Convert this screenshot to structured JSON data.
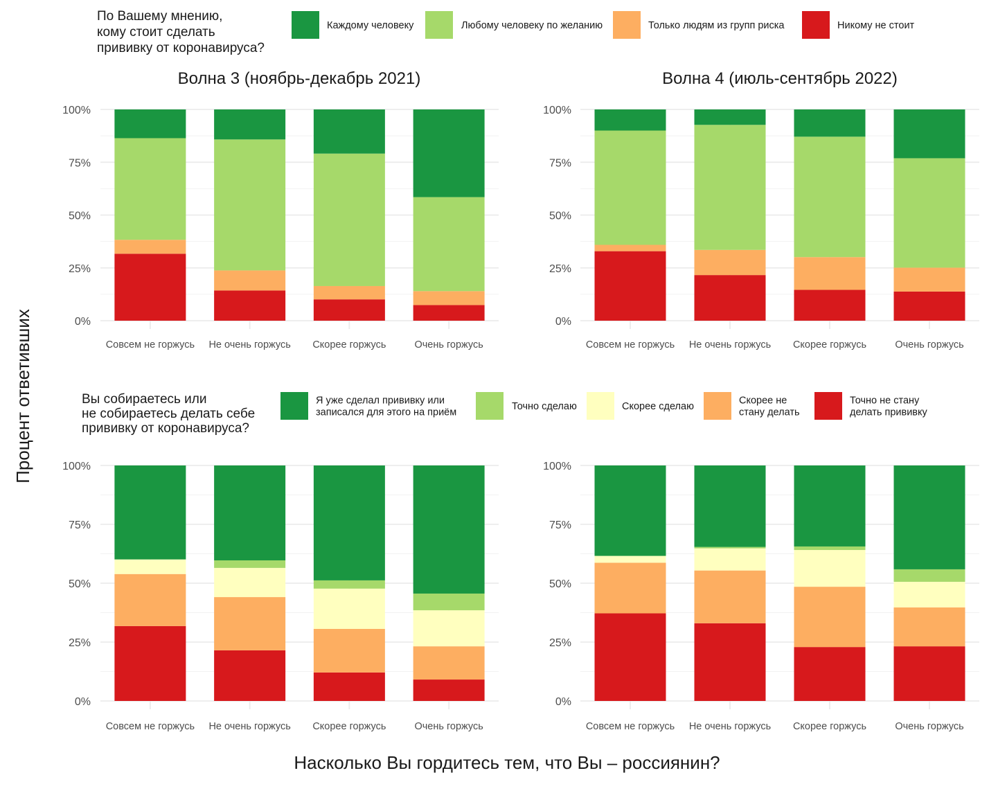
{
  "figure": {
    "y_axis_label": "Процент ответивших",
    "x_axis_label": "Насколько Вы гордитесь тем, что Вы – россиянин?",
    "facet_titles": [
      "Волна 3 (ноябрь-декабрь 2021)",
      "Волна 4 (июль-сентябрь 2022)"
    ]
  },
  "legends": [
    {
      "title_lines": [
        "По Вашему мнению,",
        "кому стоит сделать",
        "прививку от коронавируса?"
      ],
      "items": [
        {
          "label_lines": [
            "Каждому человеку"
          ],
          "color": "#1a9641"
        },
        {
          "label_lines": [
            "Любому человеку по желанию"
          ],
          "color": "#a6d96a"
        },
        {
          "label_lines": [
            "Только людям из групп риска"
          ],
          "color": "#fdae61"
        },
        {
          "label_lines": [
            "Никому не стоит"
          ],
          "color": "#d7191c"
        }
      ]
    },
    {
      "title_lines": [
        "Вы собираетесь или",
        "не собираетесь делать себе",
        "прививку от коронавируса?"
      ],
      "items": [
        {
          "label_lines": [
            "Я уже сделал прививку или",
            "записался для этого на приём"
          ],
          "color": "#1a9641"
        },
        {
          "label_lines": [
            "Точно сделаю"
          ],
          "color": "#a6d96a"
        },
        {
          "label_lines": [
            "Скорее сделаю"
          ],
          "color": "#ffffbf"
        },
        {
          "label_lines": [
            "Скорее не",
            "стану делать"
          ],
          "color": "#fdae61"
        },
        {
          "label_lines": [
            "Точно не стану",
            "делать прививку"
          ],
          "color": "#d7191c"
        }
      ]
    }
  ],
  "chart_data": [
    {
      "type": "bar",
      "stacked": true,
      "title": "Волна 3 (ноябрь-декабрь 2021)",
      "categories": [
        "Совсем не горжусь",
        "Не очень горжусь",
        "Скорее горжусь",
        "Очень горжусь"
      ],
      "y_ticks": [
        "0%",
        "25%",
        "50%",
        "75%",
        "100%"
      ],
      "ylim": [
        0,
        100
      ],
      "series": [
        {
          "name": "Никому не стоит",
          "color": "#d7191c",
          "values": [
            31.7,
            14.3,
            10.1,
            7.4
          ]
        },
        {
          "name": "Только людям из групп риска",
          "color": "#fdae61",
          "values": [
            6.6,
            9.5,
            6.3,
            6.6
          ]
        },
        {
          "name": "Любому человеку по желанию",
          "color": "#a6d96a",
          "values": [
            48.1,
            62.0,
            62.7,
            44.5
          ]
        },
        {
          "name": "Каждому человеку",
          "color": "#1a9641",
          "values": [
            13.6,
            14.2,
            20.9,
            41.5
          ]
        }
      ]
    },
    {
      "type": "bar",
      "stacked": true,
      "title": "Волна 4 (июль-сентябрь 2022)",
      "categories": [
        "Совсем не горжусь",
        "Не очень горжусь",
        "Скорее горжусь",
        "Очень горжусь"
      ],
      "y_ticks": [
        "0%",
        "25%",
        "50%",
        "75%",
        "100%"
      ],
      "ylim": [
        0,
        100
      ],
      "series": [
        {
          "name": "Никому не стоит",
          "color": "#d7191c",
          "values": [
            32.9,
            21.6,
            14.6,
            13.8
          ]
        },
        {
          "name": "Только людям из групп риска",
          "color": "#fdae61",
          "values": [
            3.0,
            11.9,
            15.5,
            11.3
          ]
        },
        {
          "name": "Любому человеку по желанию",
          "color": "#a6d96a",
          "values": [
            54.1,
            59.2,
            57.0,
            51.8
          ]
        },
        {
          "name": "Каждому человеку",
          "color": "#1a9641",
          "values": [
            10.0,
            7.3,
            12.9,
            23.1
          ]
        }
      ]
    },
    {
      "type": "bar",
      "stacked": true,
      "title": "",
      "categories": [
        "Совсем не горжусь",
        "Не очень горжусь",
        "Скорее горжусь",
        "Очень горжусь"
      ],
      "y_ticks": [
        "0%",
        "25%",
        "50%",
        "75%",
        "100%"
      ],
      "ylim": [
        0,
        100
      ],
      "series": [
        {
          "name": "Точно не стану делать прививку",
          "color": "#d7191c",
          "values": [
            31.8,
            21.5,
            12.1,
            9.1
          ]
        },
        {
          "name": "Скорее не стану делать",
          "color": "#fdae61",
          "values": [
            22.1,
            22.6,
            18.5,
            14.1
          ]
        },
        {
          "name": "Скорее сделаю",
          "color": "#ffffbf",
          "values": [
            6.2,
            12.4,
            17.1,
            15.3
          ]
        },
        {
          "name": "Точно сделаю",
          "color": "#a6d96a",
          "values": [
            0.0,
            3.2,
            3.5,
            7.1
          ]
        },
        {
          "name": "Я уже сделал прививку или записался для этого на приём",
          "color": "#1a9641",
          "values": [
            39.9,
            40.3,
            48.8,
            54.4
          ]
        }
      ]
    },
    {
      "type": "bar",
      "stacked": true,
      "title": "",
      "categories": [
        "Совсем не горжусь",
        "Не очень горжусь",
        "Скорее горжусь",
        "Очень горжусь"
      ],
      "y_ticks": [
        "0%",
        "25%",
        "50%",
        "75%",
        "100%"
      ],
      "ylim": [
        0,
        100
      ],
      "series": [
        {
          "name": "Точно не стану делать прививку",
          "color": "#d7191c",
          "values": [
            37.2,
            33.0,
            22.9,
            23.2
          ]
        },
        {
          "name": "Скорее не стану делать",
          "color": "#fdae61",
          "values": [
            21.5,
            22.4,
            25.6,
            16.5
          ]
        },
        {
          "name": "Скорее сделаю",
          "color": "#ffffbf",
          "values": [
            2.9,
            9.4,
            15.6,
            10.9
          ]
        },
        {
          "name": "Точно сделаю",
          "color": "#a6d96a",
          "values": [
            0.0,
            0.6,
            1.5,
            5.3
          ]
        },
        {
          "name": "Я уже сделал прививку или записался для этого на приём",
          "color": "#1a9641",
          "values": [
            38.4,
            34.6,
            34.4,
            44.1
          ]
        }
      ]
    }
  ]
}
